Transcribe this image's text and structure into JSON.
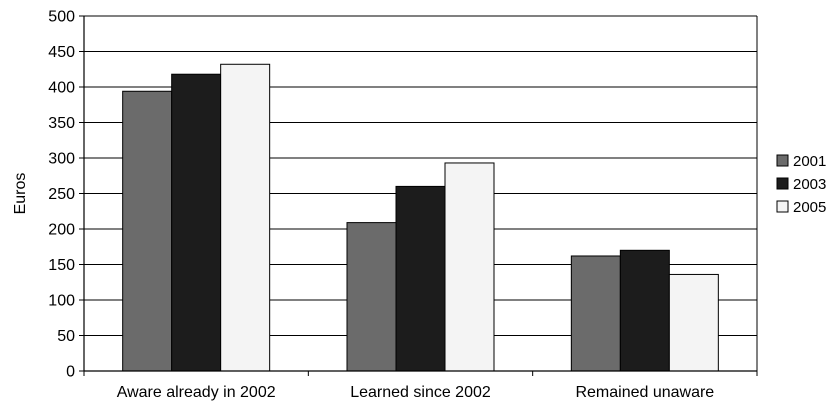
{
  "chart_data": {
    "type": "bar",
    "title": "",
    "xlabel": "",
    "ylabel": "Euros",
    "ylim": [
      0,
      500
    ],
    "yticks": [
      0,
      50,
      100,
      150,
      200,
      250,
      300,
      350,
      400,
      450,
      500
    ],
    "grid": true,
    "legend_position": "right",
    "categories": [
      "Aware already in 2002",
      "Learned since 2002",
      "Remained unaware"
    ],
    "series": [
      {
        "name": "2001",
        "color": "#6b6b6b",
        "values": [
          394,
          209,
          162
        ]
      },
      {
        "name": "2003",
        "color": "#1c1c1c",
        "values": [
          418,
          260,
          170
        ]
      },
      {
        "name": "2005",
        "color": "#f4f4f4",
        "values": [
          432,
          293,
          136
        ]
      }
    ]
  }
}
